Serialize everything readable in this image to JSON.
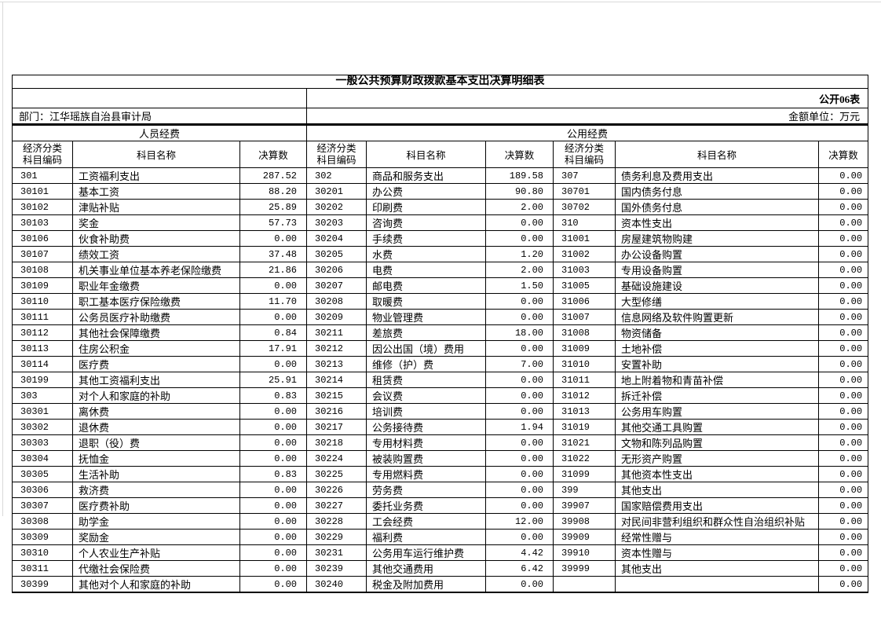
{
  "document": {
    "title": "一般公共预算财政拨款基本支出决算明细表",
    "form_label": "公开06表",
    "department_label": "部门：江华瑶族自治县审计局",
    "unit_label": "金额单位：万元",
    "sections": {
      "personnel": "人员经费",
      "public": "公用经费"
    },
    "column_headers": {
      "code_line1": "经济分类",
      "code_line2": "科目编码",
      "name": "科目名称",
      "value": "决算数"
    }
  },
  "rows": [
    [
      "301",
      "工资福利支出",
      "287.52",
      "302",
      "商品和服务支出",
      "189.58",
      "307",
      "债务利息及费用支出",
      "0.00"
    ],
    [
      "30101",
      "基本工资",
      "88.20",
      "30201",
      "办公费",
      "90.80",
      "30701",
      "国内债务付息",
      "0.00"
    ],
    [
      "30102",
      "津贴补贴",
      "25.89",
      "30202",
      "印刷费",
      "2.00",
      "30702",
      "国外债务付息",
      "0.00"
    ],
    [
      "30103",
      "奖金",
      "57.73",
      "30203",
      "咨询费",
      "0.00",
      "310",
      "资本性支出",
      "0.00"
    ],
    [
      "30106",
      "伙食补助费",
      "0.00",
      "30204",
      "手续费",
      "0.00",
      "31001",
      "房屋建筑物购建",
      "0.00"
    ],
    [
      "30107",
      "绩效工资",
      "37.48",
      "30205",
      "水费",
      "1.20",
      "31002",
      "办公设备购置",
      "0.00"
    ],
    [
      "30108",
      "机关事业单位基本养老保险缴费",
      "21.86",
      "30206",
      "电费",
      "2.00",
      "31003",
      "专用设备购置",
      "0.00"
    ],
    [
      "30109",
      "职业年金缴费",
      "0.00",
      "30207",
      "邮电费",
      "1.50",
      "31005",
      "基础设施建设",
      "0.00"
    ],
    [
      "30110",
      "职工基本医疗保险缴费",
      "11.70",
      "30208",
      "取暖费",
      "0.00",
      "31006",
      "大型修缮",
      "0.00"
    ],
    [
      "30111",
      "公务员医疗补助缴费",
      "0.00",
      "30209",
      "物业管理费",
      "0.00",
      "31007",
      "信息网络及软件购置更新",
      "0.00"
    ],
    [
      "30112",
      "其他社会保障缴费",
      "0.84",
      "30211",
      "差旅费",
      "18.00",
      "31008",
      "物资储备",
      "0.00"
    ],
    [
      "30113",
      "住房公积金",
      "17.91",
      "30212",
      "因公出国（境）费用",
      "0.00",
      "31009",
      "土地补偿",
      "0.00"
    ],
    [
      "30114",
      "医疗费",
      "0.00",
      "30213",
      "维修（护）费",
      "7.00",
      "31010",
      "安置补助",
      "0.00"
    ],
    [
      "30199",
      "其他工资福利支出",
      "25.91",
      "30214",
      "租赁费",
      "0.00",
      "31011",
      "地上附着物和青苗补偿",
      "0.00"
    ],
    [
      "303",
      "对个人和家庭的补助",
      "0.83",
      "30215",
      "会议费",
      "0.00",
      "31012",
      "拆迁补偿",
      "0.00"
    ],
    [
      "30301",
      "离休费",
      "0.00",
      "30216",
      "培训费",
      "0.00",
      "31013",
      "公务用车购置",
      "0.00"
    ],
    [
      "30302",
      "退休费",
      "0.00",
      "30217",
      "公务接待费",
      "1.94",
      "31019",
      "其他交通工具购置",
      "0.00"
    ],
    [
      "30303",
      "退职（役）费",
      "0.00",
      "30218",
      "专用材料费",
      "0.00",
      "31021",
      "文物和陈列品购置",
      "0.00"
    ],
    [
      "30304",
      "抚恤金",
      "0.00",
      "30224",
      "被装购置费",
      "0.00",
      "31022",
      "无形资产购置",
      "0.00"
    ],
    [
      "30305",
      "生活补助",
      "0.83",
      "30225",
      "专用燃料费",
      "0.00",
      "31099",
      "其他资本性支出",
      "0.00"
    ],
    [
      "30306",
      "救济费",
      "0.00",
      "30226",
      "劳务费",
      "0.00",
      "399",
      "其他支出",
      "0.00"
    ],
    [
      "30307",
      "医疗费补助",
      "0.00",
      "30227",
      "委托业务费",
      "0.00",
      "39907",
      "国家赔偿费用支出",
      "0.00"
    ],
    [
      "30308",
      "助学金",
      "0.00",
      "30228",
      "工会经费",
      "12.00",
      "39908",
      "对民间非营利组织和群众性自治组织补贴",
      "0.00"
    ],
    [
      "30309",
      "奖励金",
      "0.00",
      "30229",
      "福利费",
      "0.00",
      "39909",
      "经常性赠与",
      "0.00"
    ],
    [
      "30310",
      "个人农业生产补贴",
      "0.00",
      "30231",
      "公务用车运行维护费",
      "4.42",
      "39910",
      "资本性赠与",
      "0.00"
    ],
    [
      "30311",
      "代缴社会保险费",
      "0.00",
      "30239",
      "其他交通费用",
      "6.42",
      "39999",
      "其他支出",
      "0.00"
    ],
    [
      "30399",
      "其他对个人和家庭的补助",
      "0.00",
      "30240",
      "税金及附加费用",
      "0.00",
      "",
      "",
      "0.00"
    ]
  ]
}
